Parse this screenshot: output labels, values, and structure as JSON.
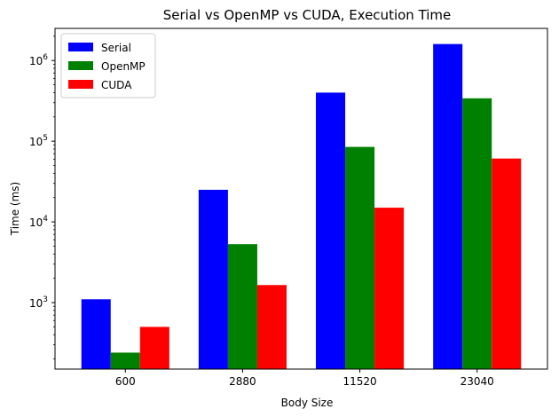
{
  "chart_data": {
    "type": "bar",
    "title": "Serial vs OpenMP vs CUDA, Execution Time",
    "xlabel": "Body Size",
    "ylabel": "Time (ms)",
    "yscale": "log",
    "ylim": [
      150,
      2500000
    ],
    "yticks": [
      {
        "value": 1000,
        "base": "10",
        "exp": "3"
      },
      {
        "value": 10000,
        "base": "10",
        "exp": "4"
      },
      {
        "value": 100000,
        "base": "10",
        "exp": "5"
      },
      {
        "value": 1000000,
        "base": "10",
        "exp": "6"
      }
    ],
    "categories": [
      "600",
      "2880",
      "11520",
      "23040"
    ],
    "series": [
      {
        "name": "Serial",
        "color": "#0000ff",
        "values": [
          1100,
          25000,
          400000,
          1600000
        ]
      },
      {
        "name": "OpenMP",
        "color": "#008000",
        "values": [
          240,
          5300,
          85000,
          340000
        ]
      },
      {
        "name": "CUDA",
        "color": "#ff0000",
        "values": [
          500,
          1650,
          15000,
          61000
        ]
      }
    ],
    "legend": "top-left",
    "grid": false
  }
}
